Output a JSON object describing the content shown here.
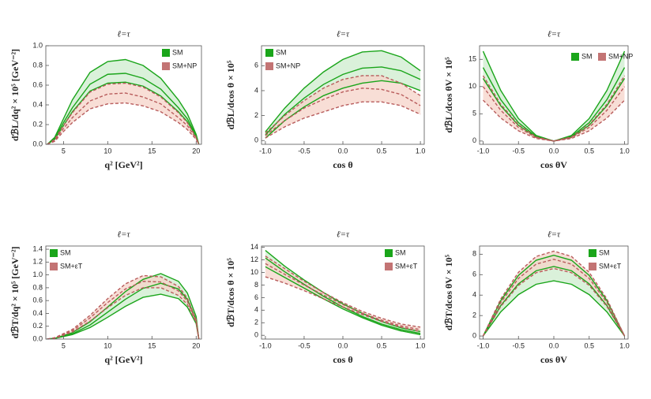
{
  "chart_data": [
    {
      "type": "line",
      "title": "ℓ=τ",
      "x_label": "q²  [GeV²]",
      "y_label": "dℬL/dq² × 10⁵  [GeV⁻²]",
      "legend": "top-right",
      "legend_layout": "column",
      "xlim": [
        3,
        20.6
      ],
      "ylim": [
        0,
        1.0
      ],
      "xticks": [
        5,
        10,
        15,
        20
      ],
      "yticks": [
        {
          "value": 0,
          "label": "0.0"
        },
        0.2,
        0.4,
        0.6,
        0.8,
        {
          "value": 1,
          "label": "1.0"
        }
      ],
      "x": [
        3.16,
        4,
        5,
        6,
        8,
        10,
        12,
        14,
        16,
        18,
        19,
        20,
        20.3
      ],
      "series": [
        {
          "name": "SM",
          "color": "#1aa51a",
          "fill": "#cdeccd",
          "dashed": false,
          "low": [
            0,
            0.05,
            0.19,
            0.33,
            0.54,
            0.62,
            0.63,
            0.59,
            0.49,
            0.33,
            0.23,
            0.08,
            0
          ],
          "values": [
            0,
            0.06,
            0.22,
            0.37,
            0.61,
            0.71,
            0.72,
            0.67,
            0.56,
            0.37,
            0.26,
            0.09,
            0
          ],
          "high": [
            0,
            0.07,
            0.26,
            0.45,
            0.73,
            0.84,
            0.86,
            0.8,
            0.67,
            0.45,
            0.31,
            0.1,
            0
          ]
        },
        {
          "name": "SM+NP",
          "color": "#b85c5c",
          "fill": "#f6d3c8",
          "dashed": true,
          "low": [
            0,
            0.03,
            0.13,
            0.22,
            0.36,
            0.41,
            0.42,
            0.39,
            0.33,
            0.22,
            0.15,
            0.05,
            0
          ],
          "values": [
            0,
            0.04,
            0.16,
            0.27,
            0.44,
            0.51,
            0.52,
            0.48,
            0.41,
            0.27,
            0.19,
            0.06,
            0
          ],
          "high": [
            0,
            0.05,
            0.19,
            0.32,
            0.53,
            0.61,
            0.62,
            0.58,
            0.48,
            0.32,
            0.22,
            0.07,
            0
          ]
        }
      ]
    },
    {
      "type": "line",
      "title": "ℓ=τ",
      "x_label": "cos θ",
      "y_label": "dℬL/dcos θ × 10⁵",
      "legend": "top-left",
      "legend_layout": "column",
      "xlim": [
        -1.05,
        1.05
      ],
      "ylim": [
        -0.3,
        7.6
      ],
      "xticks": [
        {
          "value": -1,
          "label": "-1.0"
        },
        -0.5,
        {
          "value": 0,
          "label": "0.0"
        },
        0.5,
        {
          "value": 1,
          "label": "1.0"
        }
      ],
      "yticks": [
        0,
        2,
        4,
        6
      ],
      "x": [
        -1,
        -0.75,
        -0.5,
        -0.25,
        0,
        0.25,
        0.5,
        0.75,
        1
      ],
      "series": [
        {
          "name": "SM",
          "color": "#1aa51a",
          "fill": "#cdeccd",
          "dashed": false,
          "low": [
            0.2,
            1.6,
            2.7,
            3.6,
            4.2,
            4.6,
            4.8,
            4.6,
            4.0
          ],
          "values": [
            0.45,
            2.1,
            3.4,
            4.5,
            5.3,
            5.8,
            5.9,
            5.6,
            4.9
          ],
          "high": [
            0.7,
            2.6,
            4.2,
            5.5,
            6.5,
            7.1,
            7.2,
            6.7,
            5.6
          ]
        },
        {
          "name": "SM+NP",
          "color": "#b85c5c",
          "fill": "#f6d3c8",
          "dashed": true,
          "low": [
            0.2,
            1.1,
            1.8,
            2.3,
            2.8,
            3.1,
            3.1,
            2.8,
            2.1
          ],
          "values": [
            0.4,
            1.6,
            2.6,
            3.3,
            3.9,
            4.2,
            4.1,
            3.7,
            2.8
          ],
          "high": [
            0.6,
            2.0,
            3.2,
            4.2,
            4.9,
            5.2,
            5.2,
            4.6,
            3.6
          ]
        }
      ]
    },
    {
      "type": "line",
      "title": "ℓ=τ",
      "x_label": "cos θV",
      "y_label": "dℬL/dcos θV × 10⁵",
      "legend": "top-right",
      "legend_layout": "row",
      "xlim": [
        -1.05,
        1.05
      ],
      "ylim": [
        -0.6,
        17.5
      ],
      "xticks": [
        {
          "value": -1,
          "label": "-1.0"
        },
        -0.5,
        {
          "value": 0,
          "label": "0.0"
        },
        0.5,
        {
          "value": 1,
          "label": "1.0"
        }
      ],
      "yticks": [
        0,
        5,
        10,
        15
      ],
      "x": [
        -1,
        -0.75,
        -0.5,
        -0.25,
        0,
        0.25,
        0.5,
        0.75,
        1
      ],
      "series": [
        {
          "name": "SM",
          "color": "#1aa51a",
          "fill": "#cdeccd",
          "dashed": false,
          "low": [
            11.5,
            6.47,
            2.88,
            0.72,
            0,
            0.72,
            2.88,
            6.47,
            11.5
          ],
          "values": [
            13.5,
            7.59,
            3.38,
            0.84,
            0,
            0.84,
            3.38,
            7.59,
            13.5
          ],
          "high": [
            16.5,
            9.28,
            4.13,
            1.03,
            0,
            1.03,
            4.13,
            9.28,
            16.5
          ]
        },
        {
          "name": "SM+NP",
          "color": "#b85c5c",
          "fill": "#f6d3c8",
          "dashed": true,
          "low": [
            7.5,
            4.22,
            1.88,
            0.47,
            0,
            0.47,
            1.88,
            4.22,
            7.5
          ],
          "values": [
            10,
            5.63,
            2.5,
            0.63,
            0,
            0.63,
            2.5,
            5.63,
            10
          ],
          "high": [
            12,
            6.75,
            3,
            0.75,
            0,
            0.75,
            3,
            6.75,
            12
          ]
        }
      ]
    },
    {
      "type": "line",
      "title": "ℓ=τ",
      "x_label": "q²  [GeV²]",
      "y_label": "dℬT/dq² × 10⁵  [GeV⁻²]",
      "legend": "top-left",
      "legend_layout": "column",
      "xlim": [
        3,
        20.6
      ],
      "ylim": [
        0,
        1.45
      ],
      "xticks": [
        5,
        10,
        15,
        20
      ],
      "yticks": [
        {
          "value": 0,
          "label": "0.0"
        },
        0.2,
        0.4,
        0.6,
        0.8,
        {
          "value": 1,
          "label": "1.0"
        },
        1.2,
        1.4
      ],
      "x": [
        3.16,
        4,
        6,
        8,
        10,
        12,
        14,
        16,
        18,
        19,
        20,
        20.3
      ],
      "series": [
        {
          "name": "SM",
          "color": "#1aa51a",
          "fill": "#cdeccd",
          "dashed": false,
          "low": [
            0,
            0.01,
            0.07,
            0.18,
            0.34,
            0.51,
            0.65,
            0.7,
            0.63,
            0.5,
            0.24,
            0
          ],
          "values": [
            0,
            0.01,
            0.08,
            0.22,
            0.42,
            0.62,
            0.79,
            0.87,
            0.78,
            0.62,
            0.3,
            0
          ],
          "high": [
            0,
            0.01,
            0.1,
            0.27,
            0.5,
            0.74,
            0.93,
            1.02,
            0.9,
            0.72,
            0.35,
            0
          ]
        },
        {
          "name": "SM+εT",
          "color": "#b85c5c",
          "fill": "#f6d3c8",
          "dashed": true,
          "low": [
            0,
            0.01,
            0.11,
            0.28,
            0.49,
            0.68,
            0.8,
            0.8,
            0.68,
            0.54,
            0.26,
            0
          ],
          "values": [
            0,
            0.02,
            0.13,
            0.33,
            0.57,
            0.78,
            0.9,
            0.89,
            0.75,
            0.59,
            0.28,
            0
          ],
          "high": [
            0,
            0.02,
            0.15,
            0.37,
            0.63,
            0.86,
            0.99,
            0.97,
            0.82,
            0.64,
            0.3,
            0
          ]
        }
      ]
    },
    {
      "type": "line",
      "title": "ℓ=τ",
      "x_label": "cos θ",
      "y_label": "dℬT/dcos θ × 10⁵",
      "legend": "top-right",
      "legend_layout": "column",
      "xlim": [
        -1.05,
        1.05
      ],
      "ylim": [
        -0.6,
        14.2
      ],
      "xticks": [
        {
          "value": -1,
          "label": "-1.0"
        },
        -0.5,
        {
          "value": 0,
          "label": "0.0"
        },
        0.5,
        {
          "value": 1,
          "label": "1.0"
        }
      ],
      "yticks": [
        0,
        2,
        4,
        6,
        8,
        10,
        12,
        14
      ],
      "x": [
        -1,
        -0.75,
        -0.5,
        -0.25,
        0,
        0.25,
        0.5,
        0.75,
        1
      ],
      "series": [
        {
          "name": "SM",
          "color": "#1aa51a",
          "fill": "#cdeccd",
          "dashed": false,
          "low": [
            10.9,
            9.2,
            7.5,
            5.8,
            4.2,
            2.8,
            1.6,
            0.7,
            0.1
          ],
          "values": [
            12.3,
            10.1,
            8.1,
            6.2,
            4.5,
            3.0,
            1.8,
            0.9,
            0.3
          ],
          "high": [
            13.5,
            11.0,
            8.8,
            6.8,
            5.0,
            3.5,
            2.2,
            1.2,
            0.6
          ]
        },
        {
          "name": "SM+εT",
          "color": "#b85c5c",
          "fill": "#f6d3c8",
          "dashed": true,
          "low": [
            9.3,
            8.3,
            7.1,
            5.8,
            4.5,
            3.3,
            2.2,
            1.3,
            0.6
          ],
          "values": [
            11.4,
            9.7,
            8.0,
            6.4,
            4.9,
            3.5,
            2.4,
            1.5,
            0.9
          ],
          "high": [
            12.6,
            10.6,
            8.6,
            6.8,
            5.2,
            3.8,
            2.7,
            1.8,
            1.3
          ]
        }
      ]
    },
    {
      "type": "line",
      "title": "ℓ=τ",
      "x_label": "cos θV",
      "y_label": "dℬT/dcos θV × 10⁵",
      "legend": "top-right",
      "legend_layout": "column",
      "xlim": [
        -1.05,
        1.05
      ],
      "ylim": [
        -0.3,
        8.8
      ],
      "xticks": [
        {
          "value": -1,
          "label": "-1.0"
        },
        -0.5,
        {
          "value": 0,
          "label": "0.0"
        },
        0.5,
        {
          "value": 1,
          "label": "1.0"
        }
      ],
      "yticks": [
        0,
        2,
        4,
        6,
        8
      ],
      "x": [
        -1,
        -0.75,
        -0.5,
        -0.25,
        0,
        0.25,
        0.5,
        0.75,
        1
      ],
      "series": [
        {
          "name": "SM",
          "color": "#1aa51a",
          "fill": "#cdeccd",
          "dashed": false,
          "low": [
            0,
            2.36,
            4.05,
            5.06,
            5.4,
            5.06,
            4.05,
            2.36,
            0
          ],
          "values": [
            0,
            2.98,
            5.1,
            6.38,
            6.8,
            6.38,
            5.1,
            2.98,
            0
          ],
          "high": [
            0,
            3.46,
            5.93,
            7.41,
            7.9,
            7.41,
            5.93,
            3.46,
            0
          ]
        },
        {
          "name": "SM+εT",
          "color": "#b85c5c",
          "fill": "#f6d3c8",
          "dashed": true,
          "low": [
            0,
            2.89,
            4.95,
            6.19,
            6.6,
            6.19,
            4.95,
            2.89,
            0
          ],
          "values": [
            0,
            3.28,
            5.63,
            7.03,
            7.5,
            7.03,
            5.63,
            3.28,
            0
          ],
          "high": [
            0,
            3.63,
            6.23,
            7.78,
            8.3,
            7.78,
            6.23,
            3.63,
            0
          ]
        }
      ]
    }
  ]
}
